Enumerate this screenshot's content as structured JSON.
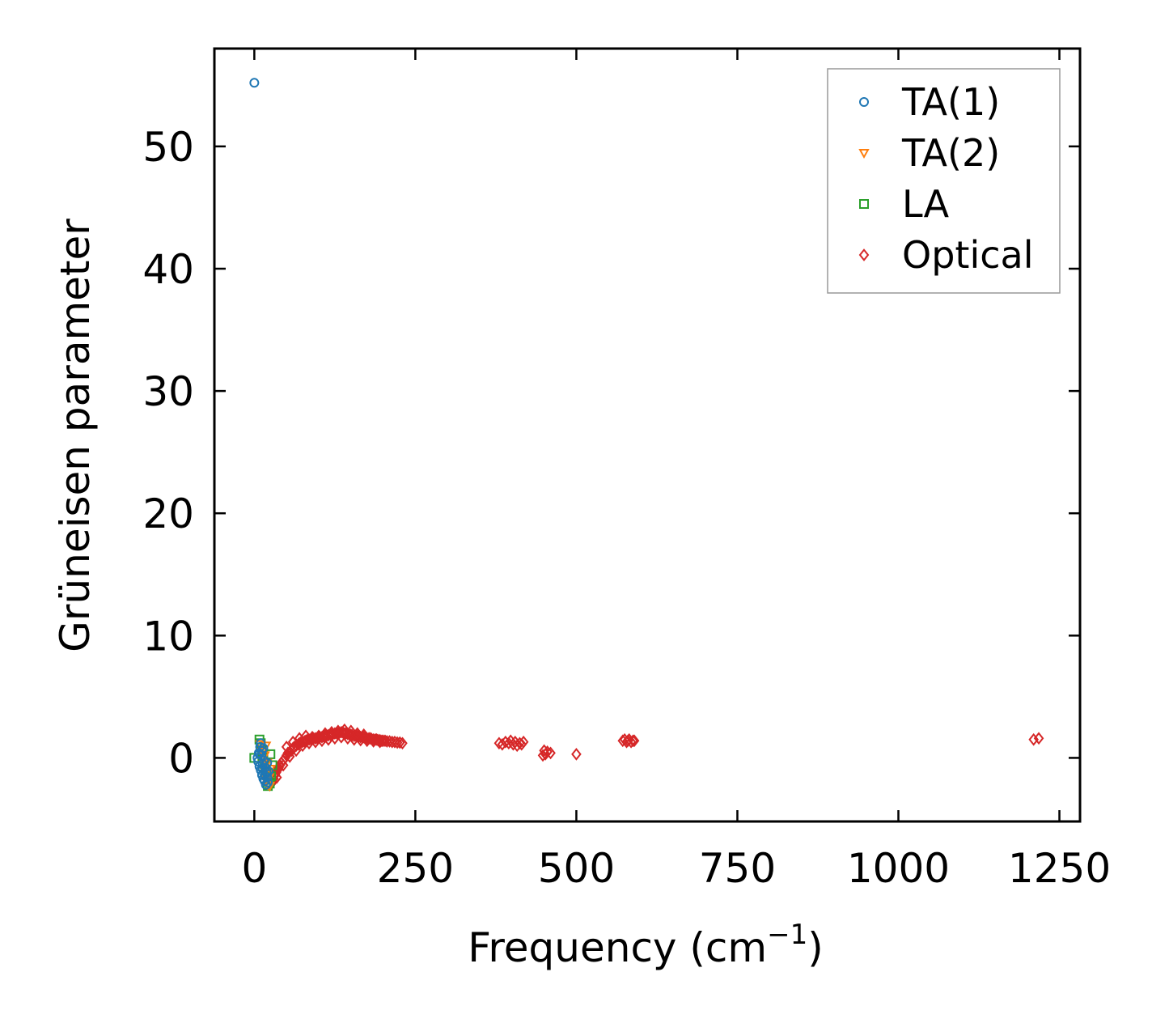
{
  "chart_data": {
    "type": "scatter",
    "title": "",
    "xlabel": "Frequency (cm",
    "xlabel_sup": "−1",
    "xlabel_end": ")",
    "ylabel": "Grüneisen parameter",
    "xlim": [
      -62,
      1282
    ],
    "ylim": [
      -5.2,
      58
    ],
    "xticks": [
      0,
      250,
      500,
      750,
      1000,
      1250
    ],
    "xtick_labels": [
      "0",
      "250",
      "500",
      "750",
      "1000",
      "1250"
    ],
    "yticks": [
      0,
      10,
      20,
      30,
      40,
      50
    ],
    "ytick_labels": [
      "0",
      "10",
      "20",
      "30",
      "40",
      "50"
    ],
    "grid": false,
    "legend_position": "top-right",
    "series": [
      {
        "name": "TA(1)",
        "marker": "circle",
        "color": "#1f77b4",
        "x": [
          0,
          5,
          6,
          7,
          8,
          9,
          10,
          10,
          11,
          12,
          12,
          13,
          14,
          14,
          15,
          16,
          17,
          18,
          19,
          20,
          21,
          22,
          8,
          13,
          17,
          20
        ],
        "y": [
          55.2,
          0.0,
          -0.3,
          0.4,
          -0.7,
          0.9,
          1.2,
          -1.0,
          0.2,
          -1.4,
          0.6,
          -0.5,
          0.8,
          -1.7,
          -0.2,
          -1.9,
          -0.8,
          -2.2,
          -1.2,
          -1.6,
          -2.0,
          -1.1,
          0.3,
          -0.9,
          -1.5,
          -0.4
        ]
      },
      {
        "name": "TA(2)",
        "marker": "triangle-down",
        "color": "#ff7f0e",
        "x": [
          9,
          12,
          15,
          17,
          19,
          21,
          23,
          25,
          16,
          20,
          24,
          18
        ],
        "y": [
          1.1,
          0.5,
          -0.5,
          -1.2,
          -1.8,
          -2.2,
          -1.6,
          -0.9,
          0.2,
          -0.4,
          -2.3,
          1.0
        ]
      },
      {
        "name": "LA",
        "marker": "square",
        "color": "#2ca02c",
        "x": [
          0,
          8,
          10,
          12,
          14,
          16,
          18,
          20,
          22,
          24,
          26,
          28,
          25,
          21
        ],
        "y": [
          0.0,
          1.5,
          1.2,
          0.6,
          0.2,
          -0.5,
          -1.0,
          -1.4,
          -1.8,
          -2.1,
          -1.5,
          -0.6,
          0.3,
          -2.3
        ]
      },
      {
        "name": "Optical",
        "marker": "diamond",
        "color": "#d62728",
        "x": [
          28,
          30,
          32,
          34,
          36,
          38,
          40,
          42,
          45,
          48,
          50,
          52,
          55,
          58,
          60,
          62,
          65,
          68,
          70,
          72,
          75,
          78,
          80,
          82,
          85,
          88,
          90,
          92,
          95,
          98,
          100,
          102,
          105,
          108,
          110,
          112,
          115,
          118,
          120,
          122,
          125,
          128,
          130,
          132,
          135,
          138,
          140,
          142,
          145,
          148,
          150,
          152,
          155,
          158,
          160,
          162,
          165,
          168,
          170,
          172,
          175,
          178,
          180,
          182,
          185,
          188,
          190,
          192,
          195,
          198,
          200,
          203,
          206,
          210,
          214,
          218,
          222,
          226,
          230,
          35,
          45,
          55,
          65,
          75,
          85,
          95,
          105,
          115,
          125,
          135,
          145,
          155,
          165,
          175,
          185,
          195,
          50,
          60,
          70,
          80,
          90,
          100,
          110,
          120,
          130,
          140,
          150,
          160,
          170,
          380,
          385,
          390,
          395,
          398,
          402,
          405,
          408,
          412,
          415,
          418,
          448,
          450,
          452,
          455,
          460,
          500,
          572,
          575,
          578,
          580,
          582,
          585,
          588,
          590,
          1210,
          1218
        ],
        "y": [
          -2.0,
          -1.7,
          -1.4,
          -1.2,
          -1.0,
          -0.8,
          -0.6,
          -0.4,
          -0.2,
          0.0,
          0.2,
          0.4,
          0.5,
          0.6,
          0.8,
          0.9,
          1.0,
          1.1,
          1.2,
          1.25,
          1.3,
          1.35,
          1.4,
          1.45,
          1.5,
          1.5,
          1.55,
          1.6,
          1.6,
          1.6,
          1.65,
          1.7,
          1.7,
          1.75,
          1.8,
          1.8,
          1.85,
          1.9,
          1.9,
          1.95,
          2.0,
          2.0,
          2.0,
          2.05,
          2.1,
          2.05,
          2.0,
          2.0,
          1.95,
          1.9,
          1.9,
          1.85,
          1.8,
          1.8,
          1.8,
          1.75,
          1.7,
          1.7,
          1.7,
          1.65,
          1.6,
          1.6,
          1.6,
          1.55,
          1.5,
          1.5,
          1.5,
          1.45,
          1.45,
          1.4,
          1.4,
          1.4,
          1.35,
          1.35,
          1.3,
          1.3,
          1.25,
          1.25,
          1.2,
          -1.6,
          -0.6,
          0.1,
          0.6,
          1.0,
          1.2,
          1.3,
          1.4,
          1.5,
          1.6,
          1.7,
          1.6,
          1.5,
          1.45,
          1.4,
          1.35,
          1.3,
          0.9,
          1.3,
          1.6,
          1.8,
          1.7,
          1.8,
          2.0,
          2.1,
          2.2,
          2.3,
          2.2,
          2.0,
          1.9,
          1.2,
          1.1,
          1.3,
          1.2,
          1.4,
          1.1,
          1.3,
          1.0,
          1.2,
          1.1,
          1.3,
          0.2,
          0.6,
          0.3,
          0.5,
          0.4,
          0.3,
          1.4,
          1.5,
          1.3,
          1.4,
          1.5,
          1.3,
          1.4,
          1.4,
          1.5,
          1.6
        ]
      }
    ]
  }
}
